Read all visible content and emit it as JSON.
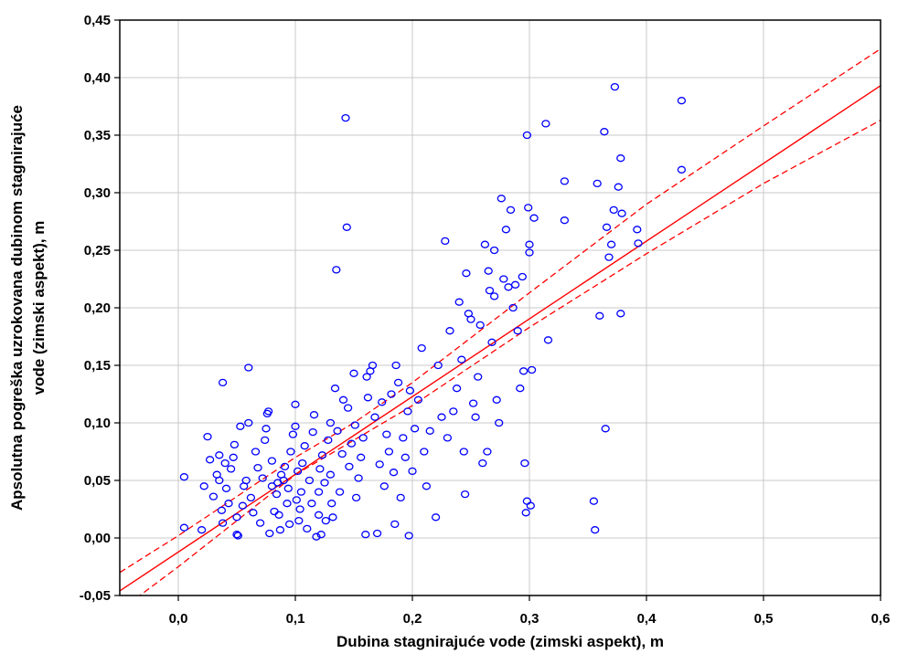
{
  "chart_data": {
    "type": "scatter",
    "xlabel": "Dubina stagnirajuće vode (zimski aspekt), m",
    "ylabel_lines": [
      "Apsolutna pogreška uzrokovana dubinom stagnirajuće",
      "vode (zimski aspekt), m"
    ],
    "xlim": [
      -0.05,
      0.6
    ],
    "ylim": [
      -0.05,
      0.45
    ],
    "x_ticks": [
      0.0,
      0.1,
      0.2,
      0.3,
      0.4,
      0.5,
      0.6
    ],
    "x_tick_labels": [
      "0,0",
      "0,1",
      "0,2",
      "0,3",
      "0,4",
      "0,5",
      "0,6"
    ],
    "y_ticks": [
      -0.05,
      0.0,
      0.05,
      0.1,
      0.15,
      0.2,
      0.25,
      0.3,
      0.35,
      0.4,
      0.45
    ],
    "y_tick_labels": [
      "-0,05",
      "0,00",
      "0,05",
      "0,10",
      "0,15",
      "0,20",
      "0,25",
      "0,30",
      "0,35",
      "0,40",
      "0,45"
    ],
    "grid": true,
    "colors": {
      "points": "#0000ff",
      "fit": "#ff0000",
      "grid": "#c8c8c8",
      "frame": "#000000"
    },
    "fit_line": {
      "x": [
        -0.05,
        0.6
      ],
      "y": [
        -0.046,
        0.393
      ]
    },
    "confidence_upper": {
      "x": [
        -0.05,
        0.0,
        0.1,
        0.15,
        0.2,
        0.3,
        0.4,
        0.5,
        0.6
      ],
      "y": [
        -0.03,
        0.002,
        0.07,
        0.1,
        0.135,
        0.213,
        0.29,
        0.358,
        0.425
      ]
    },
    "confidence_lower": {
      "x": [
        -0.05,
        0.0,
        0.1,
        0.15,
        0.2,
        0.3,
        0.4,
        0.5,
        0.6
      ],
      "y": [
        -0.063,
        -0.025,
        0.055,
        0.085,
        0.115,
        0.183,
        0.247,
        0.308,
        0.363
      ]
    },
    "points": [
      [
        0.005,
        0.053
      ],
      [
        0.005,
        0.009
      ],
      [
        0.02,
        0.007
      ],
      [
        0.022,
        0.045
      ],
      [
        0.025,
        0.088
      ],
      [
        0.027,
        0.068
      ],
      [
        0.03,
        0.036
      ],
      [
        0.033,
        0.055
      ],
      [
        0.035,
        0.05
      ],
      [
        0.035,
        0.072
      ],
      [
        0.037,
        0.024
      ],
      [
        0.038,
        0.013
      ],
      [
        0.038,
        0.135
      ],
      [
        0.04,
        0.065
      ],
      [
        0.041,
        0.043
      ],
      [
        0.043,
        0.03
      ],
      [
        0.045,
        0.06
      ],
      [
        0.047,
        0.07
      ],
      [
        0.048,
        0.081
      ],
      [
        0.05,
        0.018
      ],
      [
        0.05,
        0.003
      ],
      [
        0.051,
        0.002
      ],
      [
        0.053,
        0.097
      ],
      [
        0.055,
        0.028
      ],
      [
        0.056,
        0.045
      ],
      [
        0.058,
        0.05
      ],
      [
        0.06,
        0.148
      ],
      [
        0.06,
        0.1
      ],
      [
        0.062,
        0.035
      ],
      [
        0.064,
        0.022
      ],
      [
        0.066,
        0.075
      ],
      [
        0.068,
        0.061
      ],
      [
        0.07,
        0.013
      ],
      [
        0.072,
        0.052
      ],
      [
        0.074,
        0.085
      ],
      [
        0.075,
        0.095
      ],
      [
        0.076,
        0.108
      ],
      [
        0.077,
        0.11
      ],
      [
        0.078,
        0.004
      ],
      [
        0.08,
        0.045
      ],
      [
        0.08,
        0.067
      ],
      [
        0.082,
        0.023
      ],
      [
        0.084,
        0.038
      ],
      [
        0.085,
        0.048
      ],
      [
        0.086,
        0.02
      ],
      [
        0.087,
        0.007
      ],
      [
        0.088,
        0.055
      ],
      [
        0.09,
        0.05
      ],
      [
        0.091,
        0.062
      ],
      [
        0.093,
        0.03
      ],
      [
        0.094,
        0.043
      ],
      [
        0.095,
        0.012
      ],
      [
        0.096,
        0.075
      ],
      [
        0.098,
        0.09
      ],
      [
        0.1,
        0.116
      ],
      [
        0.1,
        0.097
      ],
      [
        0.101,
        0.033
      ],
      [
        0.102,
        0.058
      ],
      [
        0.103,
        0.015
      ],
      [
        0.104,
        0.025
      ],
      [
        0.105,
        0.04
      ],
      [
        0.106,
        0.065
      ],
      [
        0.108,
        0.08
      ],
      [
        0.11,
        0.008
      ],
      [
        0.112,
        0.05
      ],
      [
        0.114,
        0.03
      ],
      [
        0.115,
        0.092
      ],
      [
        0.116,
        0.107
      ],
      [
        0.118,
        0.001
      ],
      [
        0.12,
        0.02
      ],
      [
        0.12,
        0.04
      ],
      [
        0.121,
        0.06
      ],
      [
        0.122,
        0.003
      ],
      [
        0.123,
        0.072
      ],
      [
        0.125,
        0.048
      ],
      [
        0.126,
        0.015
      ],
      [
        0.128,
        0.085
      ],
      [
        0.13,
        0.1
      ],
      [
        0.13,
        0.055
      ],
      [
        0.131,
        0.03
      ],
      [
        0.132,
        0.018
      ],
      [
        0.134,
        0.13
      ],
      [
        0.135,
        0.233
      ],
      [
        0.136,
        0.093
      ],
      [
        0.138,
        0.04
      ],
      [
        0.14,
        0.073
      ],
      [
        0.141,
        0.12
      ],
      [
        0.143,
        0.365
      ],
      [
        0.144,
        0.27
      ],
      [
        0.145,
        0.113
      ],
      [
        0.146,
        0.062
      ],
      [
        0.148,
        0.082
      ],
      [
        0.15,
        0.143
      ],
      [
        0.151,
        0.098
      ],
      [
        0.152,
        0.035
      ],
      [
        0.154,
        0.052
      ],
      [
        0.156,
        0.07
      ],
      [
        0.158,
        0.087
      ],
      [
        0.16,
        0.003
      ],
      [
        0.161,
        0.14
      ],
      [
        0.162,
        0.122
      ],
      [
        0.164,
        0.145
      ],
      [
        0.166,
        0.15
      ],
      [
        0.168,
        0.105
      ],
      [
        0.17,
        0.004
      ],
      [
        0.172,
        0.064
      ],
      [
        0.174,
        0.118
      ],
      [
        0.176,
        0.045
      ],
      [
        0.178,
        0.09
      ],
      [
        0.18,
        0.075
      ],
      [
        0.182,
        0.125
      ],
      [
        0.184,
        0.057
      ],
      [
        0.185,
        0.012
      ],
      [
        0.186,
        0.15
      ],
      [
        0.188,
        0.135
      ],
      [
        0.19,
        0.035
      ],
      [
        0.192,
        0.087
      ],
      [
        0.194,
        0.07
      ],
      [
        0.196,
        0.11
      ],
      [
        0.197,
        0.002
      ],
      [
        0.198,
        0.128
      ],
      [
        0.2,
        0.058
      ],
      [
        0.202,
        0.095
      ],
      [
        0.205,
        0.12
      ],
      [
        0.208,
        0.165
      ],
      [
        0.21,
        0.075
      ],
      [
        0.212,
        0.045
      ],
      [
        0.215,
        0.093
      ],
      [
        0.22,
        0.018
      ],
      [
        0.222,
        0.15
      ],
      [
        0.225,
        0.105
      ],
      [
        0.228,
        0.258
      ],
      [
        0.23,
        0.087
      ],
      [
        0.232,
        0.18
      ],
      [
        0.235,
        0.11
      ],
      [
        0.238,
        0.13
      ],
      [
        0.24,
        0.205
      ],
      [
        0.242,
        0.155
      ],
      [
        0.244,
        0.075
      ],
      [
        0.245,
        0.038
      ],
      [
        0.246,
        0.23
      ],
      [
        0.248,
        0.195
      ],
      [
        0.25,
        0.19
      ],
      [
        0.252,
        0.117
      ],
      [
        0.254,
        0.105
      ],
      [
        0.256,
        0.14
      ],
      [
        0.258,
        0.185
      ],
      [
        0.26,
        0.065
      ],
      [
        0.262,
        0.255
      ],
      [
        0.264,
        0.075
      ],
      [
        0.265,
        0.232
      ],
      [
        0.266,
        0.215
      ],
      [
        0.268,
        0.17
      ],
      [
        0.27,
        0.25
      ],
      [
        0.27,
        0.21
      ],
      [
        0.272,
        0.12
      ],
      [
        0.274,
        0.1
      ],
      [
        0.276,
        0.295
      ],
      [
        0.278,
        0.225
      ],
      [
        0.28,
        0.268
      ],
      [
        0.282,
        0.218
      ],
      [
        0.284,
        0.285
      ],
      [
        0.286,
        0.2
      ],
      [
        0.288,
        0.22
      ],
      [
        0.29,
        0.18
      ],
      [
        0.292,
        0.13
      ],
      [
        0.294,
        0.227
      ],
      [
        0.295,
        0.145
      ],
      [
        0.296,
        0.065
      ],
      [
        0.297,
        0.022
      ],
      [
        0.298,
        0.032
      ],
      [
        0.298,
        0.35
      ],
      [
        0.299,
        0.287
      ],
      [
        0.3,
        0.255
      ],
      [
        0.3,
        0.248
      ],
      [
        0.301,
        0.028
      ],
      [
        0.302,
        0.146
      ],
      [
        0.304,
        0.278
      ],
      [
        0.314,
        0.36
      ],
      [
        0.316,
        0.172
      ],
      [
        0.33,
        0.31
      ],
      [
        0.33,
        0.276
      ],
      [
        0.355,
        0.032
      ],
      [
        0.356,
        0.007
      ],
      [
        0.358,
        0.308
      ],
      [
        0.36,
        0.193
      ],
      [
        0.364,
        0.353
      ],
      [
        0.365,
        0.095
      ],
      [
        0.366,
        0.27
      ],
      [
        0.368,
        0.244
      ],
      [
        0.37,
        0.255
      ],
      [
        0.372,
        0.285
      ],
      [
        0.373,
        0.392
      ],
      [
        0.376,
        0.305
      ],
      [
        0.378,
        0.195
      ],
      [
        0.378,
        0.33
      ],
      [
        0.379,
        0.282
      ],
      [
        0.392,
        0.268
      ],
      [
        0.393,
        0.256
      ],
      [
        0.43,
        0.38
      ],
      [
        0.43,
        0.32
      ]
    ]
  }
}
